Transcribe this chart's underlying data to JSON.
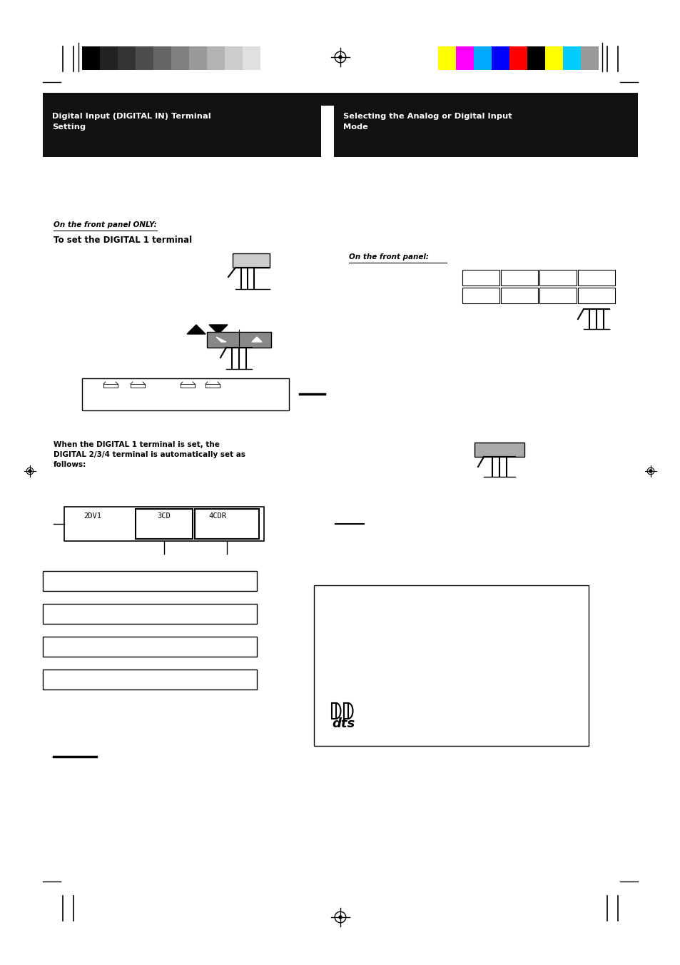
{
  "bg_color": "#ffffff",
  "page_width": 9.54,
  "page_height": 13.52,
  "dpi": 100,
  "left_header": "Digital Input (DIGITAL IN) Terminal\nSetting",
  "right_header": "Selecting the Analog or Digital Input\nMode",
  "front_panel_only_text": "On the front panel ONLY:",
  "digital1_text": "To set the DIGITAL 1 terminal",
  "when_digital_text": "When the DIGITAL 1 terminal is set, the\nDIGITAL 2/3/4 terminal is automatically set as\nfollows:",
  "on_front_panel_text": "On the front panel:",
  "grayscale_colors": [
    "#000000",
    "#222222",
    "#333333",
    "#4d4d4d",
    "#666666",
    "#808080",
    "#999999",
    "#b3b3b3",
    "#cccccc",
    "#e0e0e0"
  ],
  "color_bar_colors": [
    "#ffff00",
    "#ff00ff",
    "#00aaff",
    "#0000ff",
    "#ff0000",
    "#000000",
    "#ffff00",
    "#00ccff",
    "#999999"
  ],
  "header_bg": "#111111",
  "header_text_color": "#ffffff"
}
